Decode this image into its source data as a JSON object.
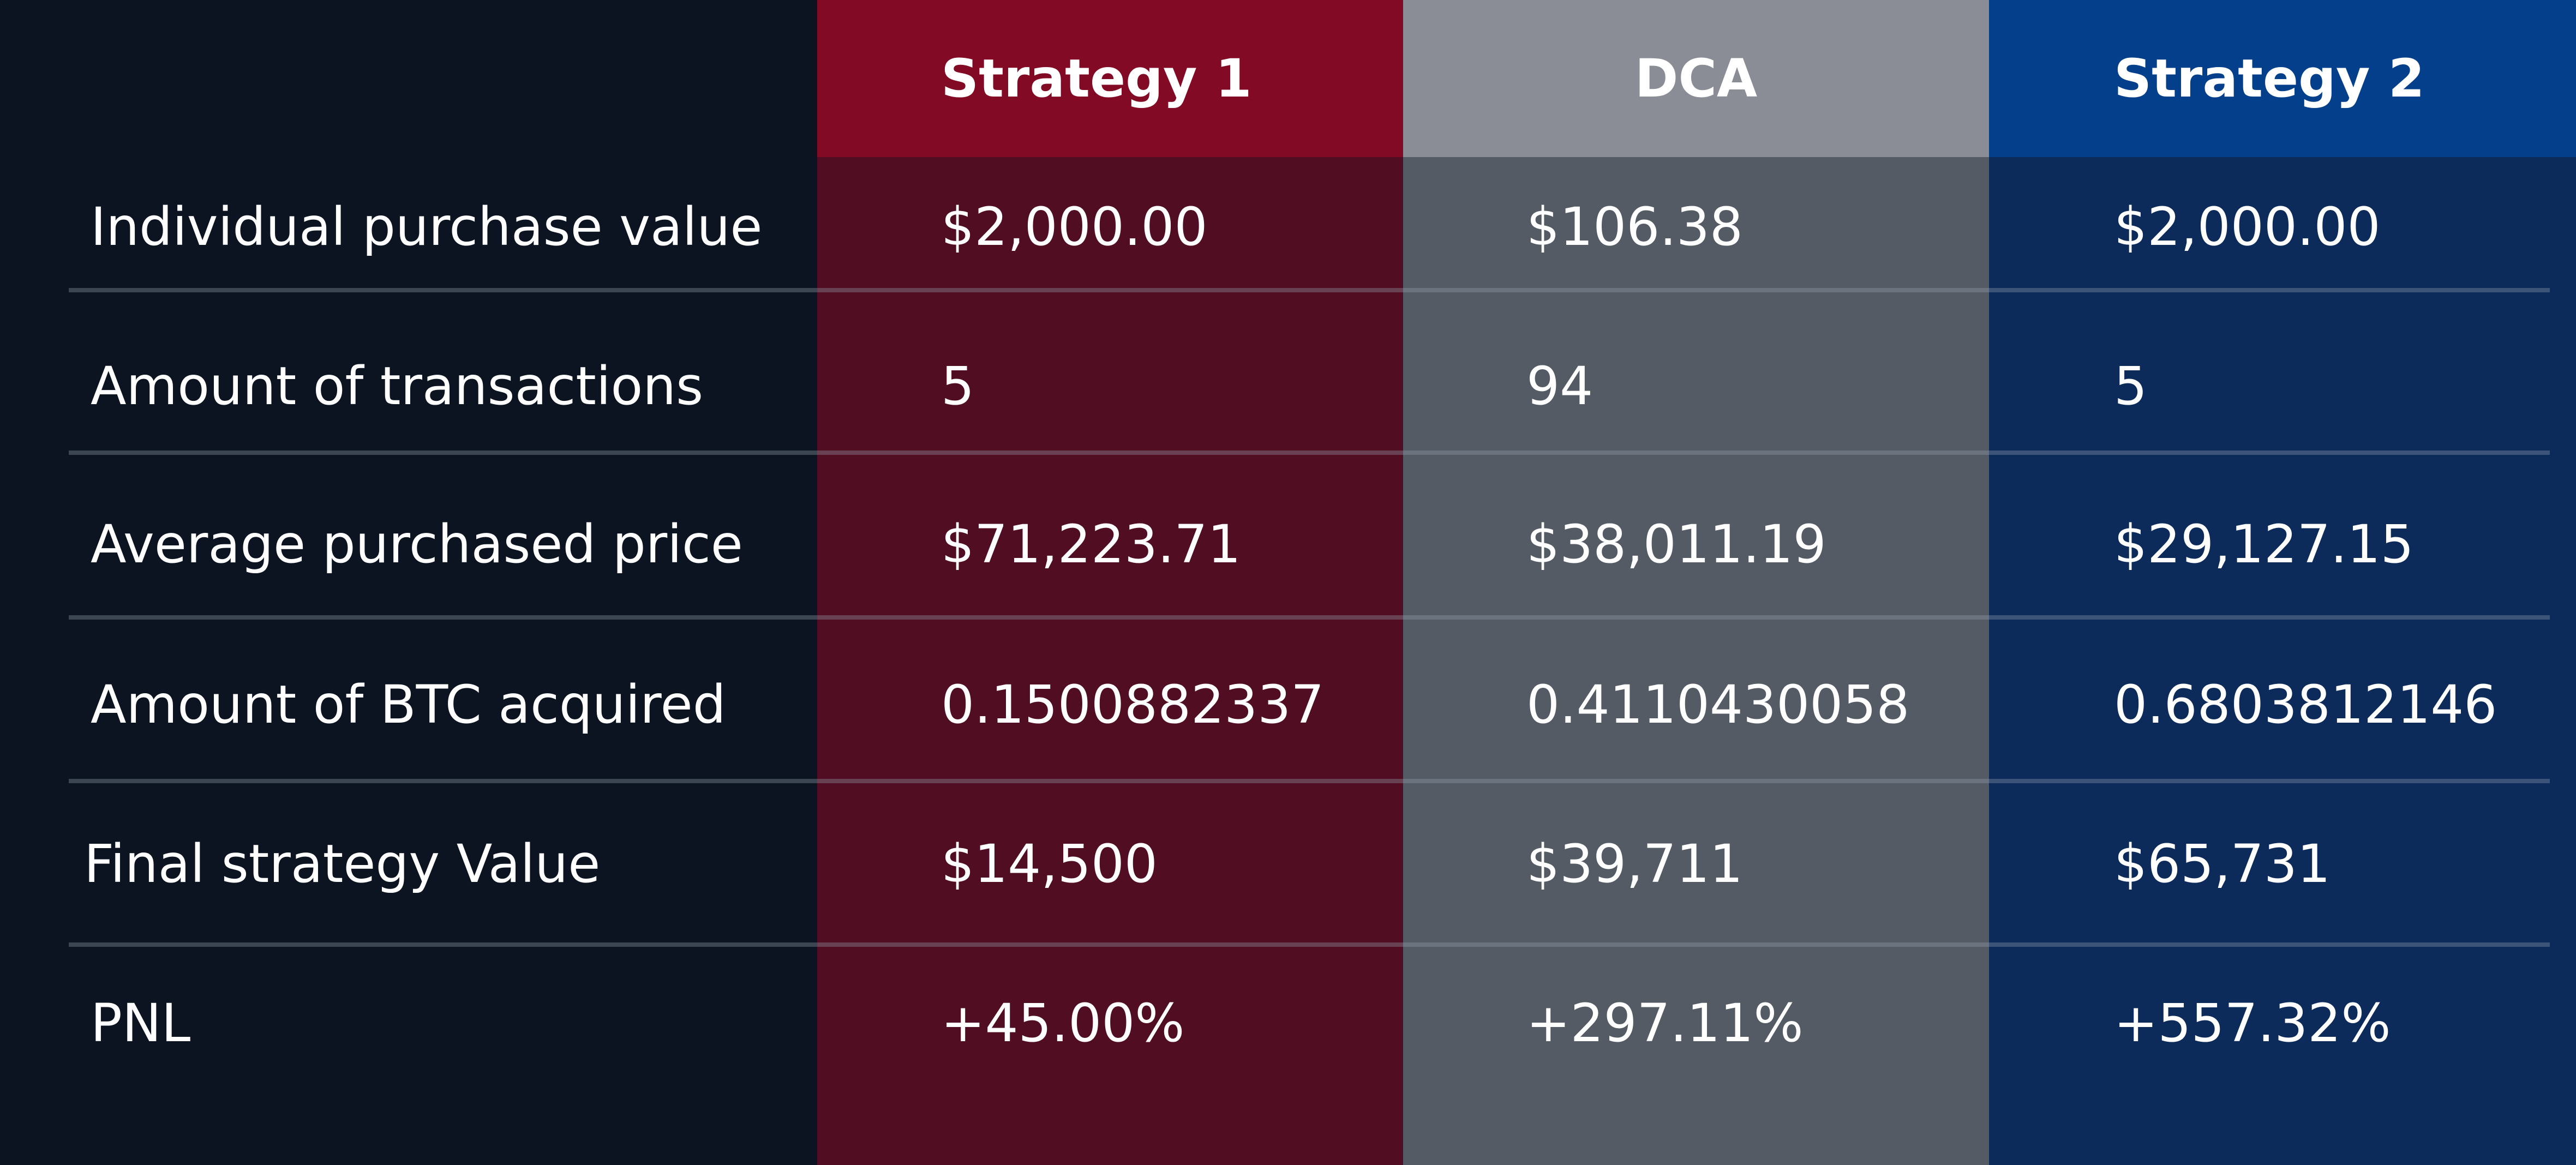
{
  "chart_data": {
    "type": "table",
    "columns": [
      "Strategy 1",
      "DCA",
      "Strategy 2"
    ],
    "rows": [
      {
        "label": "Individual purchase value",
        "values": [
          "$2,000.00",
          "$106.38",
          "$2,000.00"
        ]
      },
      {
        "label": "Amount of transactions",
        "values": [
          "5",
          "94",
          "5"
        ]
      },
      {
        "label": "Average purchased price",
        "values": [
          "$71,223.71",
          "$38,011.19",
          "$29,127.15"
        ]
      },
      {
        "label": "Amount of BTC acquired",
        "values": [
          "0.1500882337",
          "0.4110430058",
          "0.6803812146"
        ]
      },
      {
        "label": "Final strategy Value",
        "values": [
          "$14,500",
          "$39,711",
          "$65,731"
        ]
      },
      {
        "label": "PNL",
        "values": [
          "+45.00%",
          "+297.11%",
          "+557.32%"
        ]
      }
    ]
  },
  "colors": {
    "background": "#0d1421",
    "strategy1_header": "#820a24",
    "strategy1_body": "#510e22",
    "dca_header": "#8a8d95",
    "dca_body": "#545b65",
    "strategy2_header": "#043f8c",
    "strategy2_body": "#0c2b5b"
  }
}
